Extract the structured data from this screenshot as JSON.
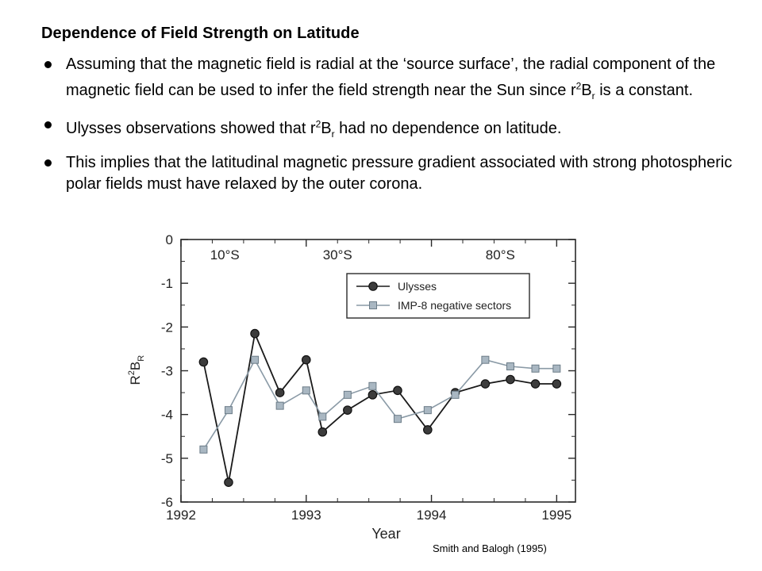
{
  "slide": {
    "title": "Dependence of Field Strength on Latitude",
    "bullets": [
      "Assuming that the magnetic field is radial at the ‘source surface’, the radial component of the magnetic field can be used to infer the field strength near the Sun since r²Bᵣ is a constant.",
      "Ulysses observations showed that r²Bᵣ had no dependence on latitude.",
      "This implies that the latitudinal magnetic pressure gradient associated with strong photospheric polar fields must have relaxed by the outer corona."
    ],
    "bullet_parts": {
      "b1_pre": "Assuming that the magnetic field is radial at the ‘source surface’, the radial component of the magnetic field can be used to infer the field strength near the Sun since r",
      "sup": "2",
      "B": "B",
      "sub": "r",
      "b1_post": " is a constant.",
      "b2_pre": "Ulysses observations showed that  r",
      "b2_post": " had no dependence on latitude."
    },
    "credit": "Smith and Balogh (1995)"
  },
  "chart_data": {
    "type": "line",
    "xlabel": "Year",
    "ylabel": "R²Bᵣ",
    "ylabel_parts": {
      "base": "R",
      "sup": "2",
      "mid": "B",
      "sub": "R"
    },
    "xlim": [
      1992,
      1995.15
    ],
    "ylim": [
      -6,
      0
    ],
    "xticks": [
      1992,
      1993,
      1994,
      1995
    ],
    "yticks": [
      0,
      -1,
      -2,
      -3,
      -4,
      -5,
      -6
    ],
    "grid": false,
    "legend_position": "top-right",
    "annotations": [
      {
        "text": "10°S",
        "x": 1992.35
      },
      {
        "text": "30°S",
        "x": 1993.25
      },
      {
        "text": "80°S",
        "x": 1994.55
      }
    ],
    "series": [
      {
        "name": "Ulysses",
        "marker": "circle",
        "color": "#1a1a1a",
        "fill": "#3c3c3c",
        "x": [
          1992.18,
          1992.38,
          1992.59,
          1992.79,
          1993.0,
          1993.13,
          1993.33,
          1993.53,
          1993.73,
          1993.97,
          1994.19,
          1994.43,
          1994.63,
          1994.83,
          1995.0
        ],
        "y": [
          -2.8,
          -5.55,
          -2.15,
          -3.5,
          -2.75,
          -4.4,
          -3.9,
          -3.55,
          -3.45,
          -4.35,
          -3.5,
          -3.3,
          -3.2,
          -3.3,
          -3.3
        ]
      },
      {
        "name": "IMP-8 negative sectors",
        "marker": "square",
        "color": "#8a9aa6",
        "fill": "#a9b7c2",
        "x": [
          1992.18,
          1992.38,
          1992.59,
          1992.79,
          1993.0,
          1993.13,
          1993.33,
          1993.53,
          1993.73,
          1993.97,
          1994.19,
          1994.43,
          1994.63,
          1994.83,
          1995.0
        ],
        "y": [
          -4.8,
          -3.9,
          -2.75,
          -3.8,
          -3.45,
          -4.05,
          -3.55,
          -3.35,
          -4.1,
          -3.9,
          -3.55,
          -2.75,
          -2.9,
          -2.95,
          -2.95
        ]
      }
    ]
  }
}
